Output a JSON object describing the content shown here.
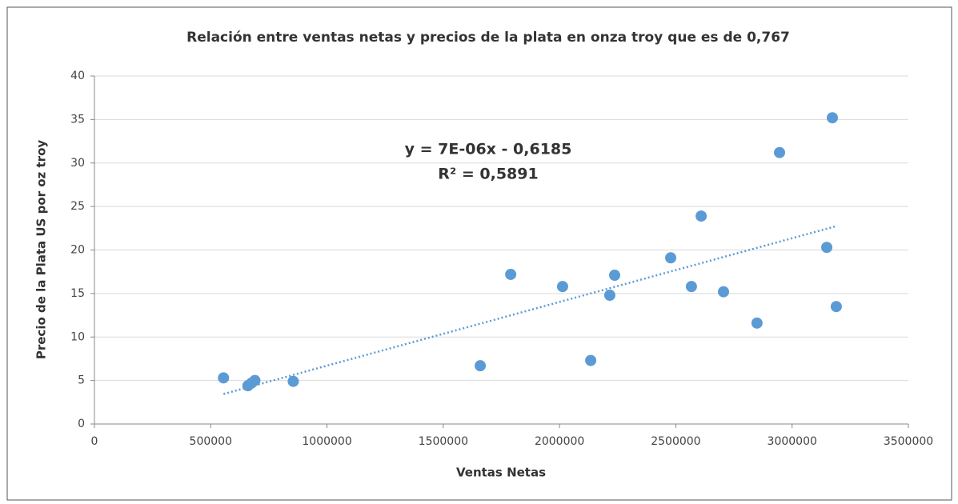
{
  "chart_data": {
    "type": "scatter",
    "title": "Relación entre ventas netas y precios de la plata en onza troy que es de 0,767",
    "xlabel": "Ventas Netas",
    "ylabel": "Precio de la Plata  US por oz troy",
    "series": [
      {
        "name": "Precio de la Plata  US por oz troy",
        "color": "#5b9bd5",
        "x": [
          555000,
          660000,
          675000,
          690000,
          855000,
          1659000,
          1790000,
          2013000,
          2134000,
          2216000,
          2237000,
          2478000,
          2567000,
          2609000,
          2705000,
          2849000,
          2946000,
          3149000,
          3173000,
          3190000
        ],
        "values": [
          5.3,
          4.4,
          4.7,
          5.0,
          4.9,
          6.7,
          17.2,
          15.8,
          7.3,
          14.8,
          17.1,
          19.1,
          15.8,
          23.9,
          15.2,
          11.6,
          31.2,
          20.3,
          35.2,
          13.5
        ]
      }
    ],
    "trendline": {
      "equation": "y = 7E-06x - 0,6185",
      "r2": "R² = 0,5891"
    },
    "xlim": [
      0,
      3500000
    ],
    "xticks": [
      0,
      500000,
      1000000,
      1500000,
      2000000,
      2500000,
      3000000,
      3500000
    ],
    "ylim": [
      0,
      40
    ],
    "yticks": [
      0,
      5,
      10,
      15,
      20,
      25,
      30,
      35,
      40
    ],
    "grid": true
  }
}
